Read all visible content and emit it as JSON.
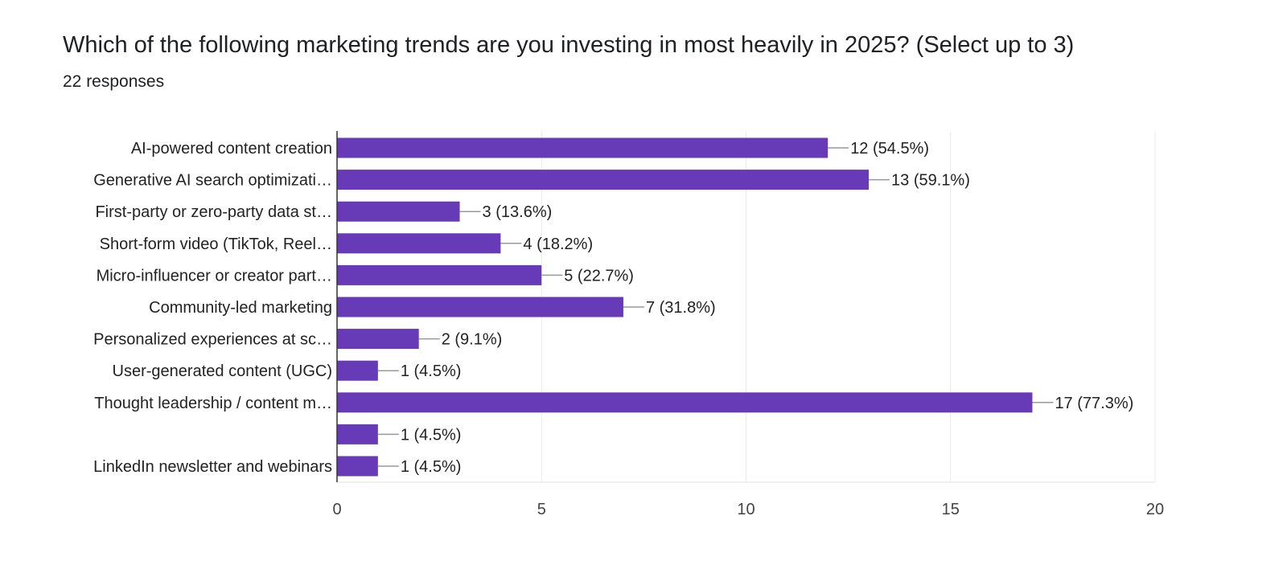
{
  "title": "Which of the following marketing trends are you investing in most heavily in 2025? (Select up to 3)",
  "subtitle": "22 responses",
  "colors": {
    "bar": "#673ab7",
    "grid": "#ebebeb",
    "axis": "#333333",
    "leader": "#999999"
  },
  "chart_data": {
    "type": "bar",
    "orientation": "horizontal",
    "title": "Which of the following marketing trends are you investing in most heavily in 2025? (Select up to 3)",
    "categories": [
      "AI-powered content creation",
      "Generative AI search optimizati…",
      "First-party or zero-party data st…",
      "Short-form video (TikTok, Reel…",
      "Micro-influencer or creator part…",
      "Community-led marketing",
      "Personalized experiences at sc…",
      "User-generated content (UGC)",
      "Thought leadership / content m…",
      "",
      "LinkedIn newsletter and webinars"
    ],
    "values": [
      12,
      13,
      3,
      4,
      5,
      7,
      2,
      1,
      17,
      1,
      1
    ],
    "data_labels": [
      "12 (54.5%)",
      "13 (59.1%)",
      "3 (13.6%)",
      "4 (18.2%)",
      "5 (22.7%)",
      "7 (31.8%)",
      "2 (9.1%)",
      "1 (4.5%)",
      "17 (77.3%)",
      "1 (4.5%)",
      "1 (4.5%)"
    ],
    "xlim": [
      0,
      20
    ],
    "xticks": [
      "0",
      "5",
      "10",
      "15",
      "20"
    ],
    "grid": true,
    "xlabel": "",
    "ylabel": ""
  }
}
